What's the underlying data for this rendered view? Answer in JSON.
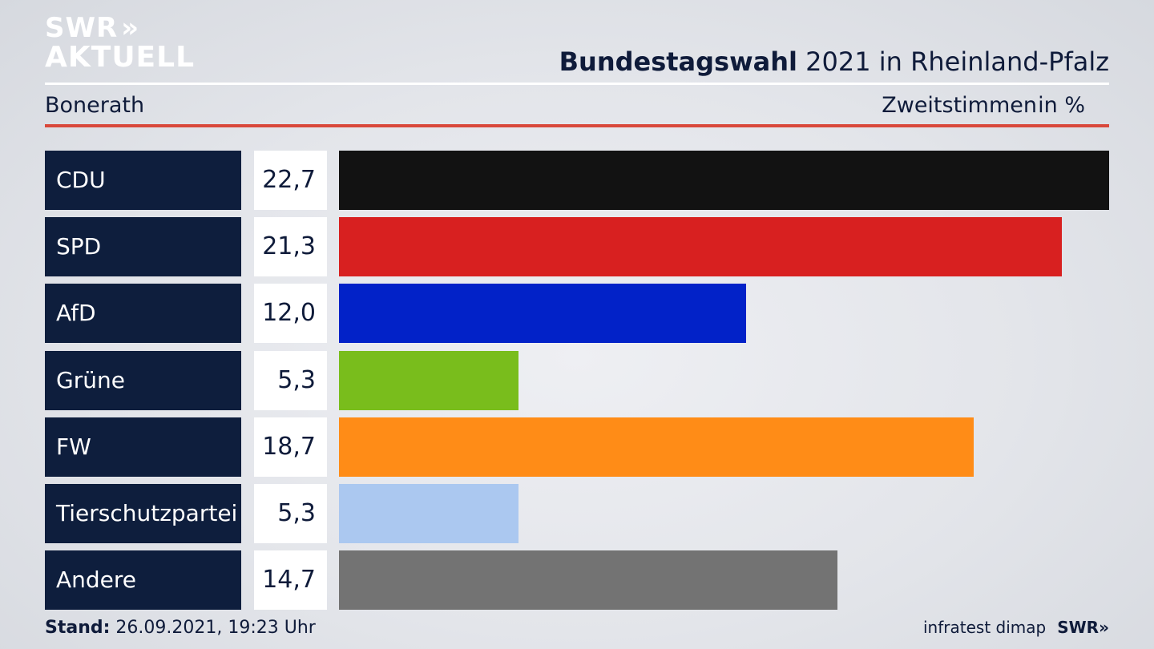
{
  "logo": {
    "line1": "SWR",
    "chevrons": "»",
    "line2": "AKTUELL"
  },
  "header": {
    "title_bold": "Bundestagswahl",
    "title_rest": " 2021 in Rheinland-Pfalz",
    "location": "Bonerath",
    "metric": "Zweitstimmen",
    "unit": "in %"
  },
  "chart_data": {
    "type": "bar",
    "orientation": "horizontal",
    "categories": [
      "CDU",
      "SPD",
      "AfD",
      "Grüne",
      "FW",
      "Tierschutzpartei",
      "Andere"
    ],
    "values": [
      22.7,
      21.3,
      12.0,
      5.3,
      18.7,
      5.3,
      14.7
    ],
    "value_labels": [
      "22,7",
      "21,3",
      "12,0",
      "5,3",
      "18,7",
      "5,3",
      "14,7"
    ],
    "colors": [
      "#121212",
      "#d82020",
      "#0222c8",
      "#79bd1c",
      "#ff8c17",
      "#abc8f0",
      "#737373"
    ],
    "xlim": [
      0,
      22.7
    ]
  },
  "footer": {
    "stand_label": "Stand:",
    "stand_value": " 26.09.2021, 19:23 Uhr",
    "source": "infratest dimap",
    "brand": "SWR»"
  }
}
